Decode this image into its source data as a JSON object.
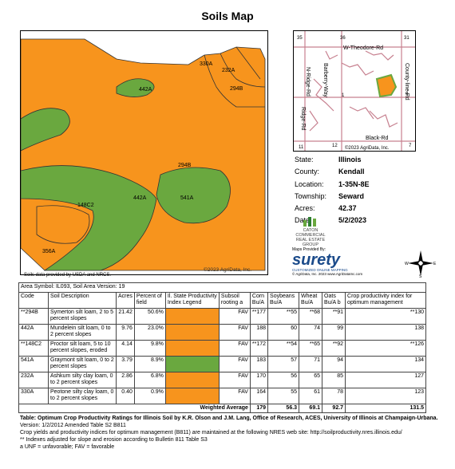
{
  "title": "Soils Map",
  "map": {
    "labels": {
      "a330": "330A",
      "a232": "232A",
      "a294_top": "294B",
      "a442_top": "442A",
      "a294": "294B",
      "a442": "442A",
      "a541": "541A",
      "a148": "148C2",
      "a356": "356A"
    },
    "credit_source": "Soils data provided by USDA and NRCS.",
    "credit_map": "©2023 AgriData, Inc.",
    "colors": {
      "orange": "#f7941d",
      "green": "#6aa83f"
    }
  },
  "location_map": {
    "labels": {
      "n35": "35",
      "n36": "36",
      "n31": "31",
      "theodore": "W-Theodore-Rd",
      "countyline": "County-line-Rd",
      "barberry": "Barberry-Way",
      "nridge": "N-Ridge-Rd",
      "ridge": "Ridge-Rd",
      "black": "Black-Rd",
      "n1": "1",
      "n6": "6",
      "n11": "11",
      "n12": "12",
      "n7": "7",
      "credit": "©2023 AgriData, Inc."
    }
  },
  "info": [
    {
      "k": "State:",
      "v": "Illinois"
    },
    {
      "k": "County:",
      "v": "Kendall"
    },
    {
      "k": "Location:",
      "v": "1-35N-8E"
    },
    {
      "k": "Township:",
      "v": "Seward"
    },
    {
      "k": "Acres:",
      "v": "42.37"
    },
    {
      "k": "Date:",
      "v": "5/2/2023"
    }
  ],
  "logos": {
    "caton": "CATON COMMERCIAL REAL ESTATE GROUP",
    "surety_by": "Maps Provided By:",
    "surety": "surety",
    "surety_tag": "CUSTOMIZED ONLINE MAPPING",
    "surety_credit": "© AgriData, Inc. 2023        www.AgriDataInc.com"
  },
  "table": {
    "area_symbol": "Area Symbol: IL093, Soil Area Version: 19",
    "headers": [
      "Code",
      "Soil Description",
      "Acres",
      "Percent of field",
      "Il. State Productivity Index Legend",
      "Subsoil rooting a",
      "Corn Bu/A",
      "Soybeans Bu/A",
      "Wheat Bu/A",
      "Oats Bu/A b",
      "Crop productivity index for optimum management"
    ],
    "rows": [
      {
        "code": "**294B",
        "desc": "Symerton silt loam, 2 to 5 percent slopes",
        "acres": "21.42",
        "pct": "50.6%",
        "color": "orange",
        "sub": "FAV",
        "corn": "**177",
        "soy": "**55",
        "wheat": "**68",
        "oats": "**91",
        "cpi": "**130"
      },
      {
        "code": "442A",
        "desc": "Mundelein silt loam, 0 to 2 percent slopes",
        "acres": "9.76",
        "pct": "23.0%",
        "color": "orange",
        "sub": "FAV",
        "corn": "188",
        "soy": "60",
        "wheat": "74",
        "oats": "99",
        "cpi": "138"
      },
      {
        "code": "**148C2",
        "desc": "Proctor silt loam, 5 to 10 percent slopes, eroded",
        "acres": "4.14",
        "pct": "9.8%",
        "color": "orange",
        "sub": "FAV",
        "corn": "**172",
        "soy": "**54",
        "wheat": "**65",
        "oats": "**92",
        "cpi": "**126"
      },
      {
        "code": "541A",
        "desc": "Graymont silt loam, 0 to 2 percent slopes",
        "acres": "3.79",
        "pct": "8.9%",
        "color": "green",
        "sub": "FAV",
        "corn": "183",
        "soy": "57",
        "wheat": "71",
        "oats": "94",
        "cpi": "134"
      },
      {
        "code": "232A",
        "desc": "Ashkum silty clay loam, 0 to 2 percent slopes",
        "acres": "2.86",
        "pct": "6.8%",
        "color": "orange",
        "sub": "FAV",
        "corn": "170",
        "soy": "56",
        "wheat": "65",
        "oats": "85",
        "cpi": "127"
      },
      {
        "code": "330A",
        "desc": "Peotone silty clay loam, 0 to 2 percent slopes",
        "acres": "0.40",
        "pct": "0.9%",
        "color": "orange",
        "sub": "FAV",
        "corn": "164",
        "soy": "55",
        "wheat": "61",
        "oats": "78",
        "cpi": "123"
      }
    ],
    "weighted": {
      "label": "Weighted Average",
      "corn": "179",
      "soy": "56.3",
      "wheat": "69.1",
      "oats": "92.7",
      "cpi": "131.5"
    }
  },
  "footer": {
    "bold": "Table: Optimum Crop Productivity Ratings for Illinois Soil by K.R. Olson and J.M. Lang, Office of Research, ACES, University of Illinois at Champaign-Urbana.",
    "version": " Version: 1/2/2012 Amended Table S2 B811",
    "line2": "Crop yields and productivity indices for optimum management (B811) are maintained at the following NRES web site: http://soilproductivity.nres.illinois.edu/",
    "line3": "** Indexes adjusted for slope and erosion according to Bulletin 811 Table S3",
    "line4": "a UNF = unfavorable; FAV = favorable"
  }
}
